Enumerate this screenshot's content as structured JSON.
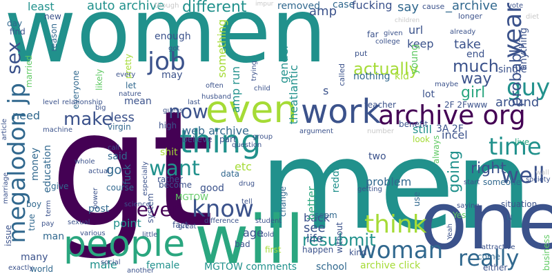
{
  "palette": {
    "dark_purple": "#440154",
    "indigo": "#3b528b",
    "blue": "#31688e",
    "teal": "#21918c",
    "sea_green": "#2aa67f",
    "green": "#5ec962",
    "yellow_green": "#a5db36",
    "yellow": "#dde318",
    "light_gray": "#c8c8c8"
  },
  "words": [
    {
      "text": "women",
      "size": 1,
      "color": "#21918c"
    },
    {
      "text": "gt",
      "size": 1,
      "color": "#440154"
    },
    {
      "text": "men",
      "size": 1,
      "color": "#21918c"
    },
    {
      "text": "one",
      "size": 1,
      "color": "#3b528b"
    },
    {
      "text": "will",
      "size": 1,
      "color": "#2aa67f"
    },
    {
      "text": "people",
      "size": 1,
      "color": "#2aa67f"
    },
    {
      "text": "even",
      "size": 1,
      "color": "#a5db36"
    },
    {
      "text": "work",
      "size": 1,
      "color": "#3b528b"
    },
    {
      "text": "archive org",
      "size": 1,
      "color": "#440154"
    },
    {
      "text": "thing",
      "size": 1,
      "color": "#21918c"
    },
    {
      "text": "woman",
      "size": 1,
      "color": "#31688e"
    },
    {
      "text": "megalodon jp",
      "size": 1,
      "color": "#31688e"
    },
    {
      "text": "know",
      "size": 1,
      "color": "#3b528b"
    },
    {
      "text": "never",
      "size": 1,
      "color": "#440154"
    },
    {
      "text": "think",
      "size": 1,
      "color": "#a5db36"
    },
    {
      "text": "really",
      "size": 1,
      "color": "#31688e"
    },
    {
      "text": "job",
      "size": 1,
      "color": "#3b528b"
    },
    {
      "text": "sex",
      "size": 1,
      "color": "#3b528b"
    },
    {
      "text": "year",
      "size": 1,
      "color": "#3b528b"
    },
    {
      "text": "guy",
      "size": 1,
      "color": "#21918c"
    },
    {
      "text": "time",
      "size": 1,
      "color": "#21918c"
    },
    {
      "text": "well",
      "size": 1,
      "color": "#3b528b"
    },
    {
      "text": "want",
      "size": 1,
      "color": "#21918c"
    },
    {
      "text": "now",
      "size": 1,
      "color": "#3b528b"
    },
    {
      "text": "make",
      "size": 1,
      "color": "#3b528b"
    },
    {
      "text": "resubmit",
      "size": 1,
      "color": "#21918c"
    },
    {
      "text": "actually",
      "size": 1,
      "color": "#a5db36"
    },
    {
      "text": "much",
      "size": 1,
      "color": "#3b528b"
    },
    {
      "text": "way",
      "size": 1,
      "color": "#3b528b"
    },
    {
      "text": "probably",
      "size": 1,
      "color": "#3b528b"
    },
    {
      "text": "girl",
      "size": 1,
      "color": "#2aa67f"
    },
    {
      "text": "going",
      "size": 1,
      "color": "#21918c"
    },
    {
      "text": "right",
      "size": 1,
      "color": "#3b528b"
    },
    {
      "text": "different",
      "size": 1,
      "color": "#21918c"
    },
    {
      "text": "auto archive",
      "size": 1,
      "color": "#21918c"
    },
    {
      "text": "least",
      "size": 1,
      "color": "#21918c"
    },
    {
      "text": "say",
      "size": 1,
      "color": "#31688e"
    },
    {
      "text": "amp",
      "size": 1,
      "color": "#3b528b"
    },
    {
      "text": "case",
      "size": 1,
      "color": "#31688e"
    },
    {
      "text": "fucking",
      "size": 1,
      "color": "#3b528b"
    },
    {
      "text": "_archive",
      "size": 1,
      "color": "#31688e"
    },
    {
      "text": "removed",
      "size": 1,
      "color": "#31688e"
    },
    {
      "text": "something",
      "size": 1,
      "color": "#a5db36"
    },
    {
      "text": "enough",
      "size": 1,
      "color": "#3b528b"
    },
    {
      "text": "may",
      "size": 1,
      "color": "#3b528b"
    },
    {
      "text": "amp run",
      "size": 1,
      "color": "#21918c"
    },
    {
      "text": "gender",
      "size": 1,
      "color": "#21918c"
    },
    {
      "text": "theatlantic",
      "size": 1,
      "color": "#21918c"
    },
    {
      "text": "url",
      "size": 1,
      "color": "#3b528b"
    },
    {
      "text": "keep",
      "size": 1,
      "color": "#3b528b"
    },
    {
      "text": "take",
      "size": 1,
      "color": "#3b528b"
    },
    {
      "text": "end",
      "size": 1,
      "color": "#3b528b"
    },
    {
      "text": "young",
      "size": 1,
      "color": "#5ec962"
    },
    {
      "text": "kid",
      "size": 1,
      "color": "#a5db36"
    },
    {
      "text": "nothing",
      "size": 1,
      "color": "#31688e"
    },
    {
      "text": "lot",
      "size": 1,
      "color": "#3b528b"
    },
    {
      "text": "single",
      "size": 1,
      "color": "#3b528b"
    },
    {
      "text": "anything",
      "size": 1,
      "color": "#3b528b"
    },
    {
      "text": "around",
      "size": 1,
      "color": "#3b528b"
    },
    {
      "text": "2F 2Fwww",
      "size": 1,
      "color": "#3b528b"
    },
    {
      "text": "3A 2F",
      "size": 1,
      "color": "#3b528b"
    },
    {
      "text": "incel",
      "size": 1,
      "color": "#3b528b"
    },
    {
      "text": "still",
      "size": 1,
      "color": "#21918c"
    },
    {
      "text": "web archive",
      "size": 1,
      "color": "#31688e"
    },
    {
      "text": "education",
      "size": 1,
      "color": "#31688e"
    },
    {
      "text": "money",
      "size": 1,
      "color": "#31688e"
    },
    {
      "text": "need",
      "size": 1,
      "color": "#31688e"
    },
    {
      "text": "less",
      "size": 1,
      "color": "#3b528b"
    },
    {
      "text": "mean",
      "size": 1,
      "color": "#3b528b"
    },
    {
      "text": "let",
      "size": 1,
      "color": "#31688e"
    },
    {
      "text": "virgin",
      "size": 1,
      "color": "#31688e"
    },
    {
      "text": "high",
      "size": 1,
      "color": "#3b528b"
    },
    {
      "text": "believe",
      "size": 1,
      "color": "#3b528b"
    },
    {
      "text": "part",
      "size": 1,
      "color": "#3b528b"
    },
    {
      "text": "said",
      "size": 1,
      "color": "#31688e"
    },
    {
      "text": "shit",
      "size": 1,
      "color": "#a5db36"
    },
    {
      "text": "etc",
      "size": 1,
      "color": "#a5db36"
    },
    {
      "text": "go",
      "size": 1,
      "color": "#31688e"
    },
    {
      "text": "fuck",
      "size": 1,
      "color": "#31688e"
    },
    {
      "text": "good",
      "size": 1,
      "color": "#3b528b"
    },
    {
      "text": "rather",
      "size": 1,
      "color": "#3b528b"
    },
    {
      "text": "data",
      "size": 1,
      "color": "#31688e"
    },
    {
      "text": "course",
      "size": 1,
      "color": "#31688e"
    },
    {
      "text": "give",
      "size": 1,
      "color": "#31688e"
    },
    {
      "text": "become",
      "size": 1,
      "color": "#3b528b"
    },
    {
      "text": "MGTOW",
      "size": 1,
      "color": "#5ec962"
    },
    {
      "text": "system",
      "size": 1,
      "color": "#3b528b"
    },
    {
      "text": "point",
      "size": 1,
      "color": "#21918c"
    },
    {
      "text": "post",
      "size": 1,
      "color": "#31688e"
    },
    {
      "text": "age",
      "size": 1,
      "color": "#3b528b"
    },
    {
      "text": "back",
      "size": 1,
      "color": "#3b528b"
    },
    {
      "text": "see",
      "size": 1,
      "color": "#3b528b"
    },
    {
      "text": "life",
      "size": 1,
      "color": "#3b528b"
    },
    {
      "text": "male",
      "size": 1,
      "color": "#21918c"
    },
    {
      "text": "female",
      "size": 1,
      "color": "#21918c"
    },
    {
      "text": "MGTOW comments",
      "size": 1,
      "color": "#21918c"
    },
    {
      "text": "school",
      "size": 1,
      "color": "#31688e"
    },
    {
      "text": "archive click",
      "size": 1,
      "color": "#a5db36"
    },
    {
      "text": "problem",
      "size": 1,
      "color": "#31688e"
    },
    {
      "text": "two",
      "size": 1,
      "color": "#3b528b"
    },
    {
      "text": "reddit",
      "size": 1,
      "color": "#21918c"
    },
    {
      "text": "better",
      "size": 1,
      "color": "#2aa67f"
    },
    {
      "text": "seem",
      "size": 1,
      "color": "#31688e"
    },
    {
      "text": "change",
      "size": 1,
      "color": "#31688e"
    },
    {
      "text": "fact",
      "size": 1,
      "color": "#3b528b"
    },
    {
      "text": "many",
      "size": 1,
      "color": "#3b528b"
    },
    {
      "text": "man",
      "size": 1,
      "color": "#31688e"
    },
    {
      "text": "true",
      "size": 1,
      "color": "#31688e"
    },
    {
      "text": "issue",
      "size": 1,
      "color": "#3b528b"
    },
    {
      "text": "boy",
      "size": 1,
      "color": "#31688e"
    },
    {
      "text": "world",
      "size": 1,
      "color": "#31688e"
    },
    {
      "text": "bad",
      "size": 1,
      "color": "#3b528b"
    },
    {
      "text": "first",
      "size": 1,
      "color": "#a5db36"
    },
    {
      "text": "happen",
      "size": 1,
      "color": "#3b528b"
    },
    {
      "text": "kind",
      "size": 1,
      "color": "#3b528b"
    },
    {
      "text": "without",
      "size": 1,
      "color": "#3b528b"
    },
    {
      "text": "look",
      "size": 1,
      "color": "#a5db36"
    },
    {
      "text": "live",
      "size": 1,
      "color": "#2aa67f"
    },
    {
      "text": "someone",
      "size": 1,
      "color": "#31688e"
    },
    {
      "text": "situation",
      "size": 1,
      "color": "#3b528b"
    },
    {
      "text": "use",
      "size": 1,
      "color": "#31688e"
    },
    {
      "text": "Yes",
      "size": 1,
      "color": "#5ec962"
    },
    {
      "text": "business",
      "size": 1,
      "color": "#5ec962"
    },
    {
      "text": "either",
      "size": 1,
      "color": "#3b528b"
    },
    {
      "text": "come",
      "size": 1,
      "color": "#31688e"
    },
    {
      "text": "always",
      "size": 1,
      "color": "#5ec962"
    },
    {
      "text": "benefit",
      "size": 1,
      "color": "#3b528b"
    },
    {
      "text": "teacher",
      "size": 1,
      "color": "#3b528b"
    },
    {
      "text": "u",
      "size": 1,
      "color": "#31688e"
    },
    {
      "text": "day",
      "size": 1,
      "color": "#31688e"
    },
    {
      "text": "find",
      "size": 1,
      "color": "#3b528b"
    },
    {
      "text": "new",
      "size": 1,
      "color": "#3b528b"
    },
    {
      "text": "reason",
      "size": 1,
      "color": "#31688e"
    },
    {
      "text": "married",
      "size": 1,
      "color": "#5ec962"
    },
    {
      "text": "everyone",
      "size": 1,
      "color": "#31688e"
    },
    {
      "text": "likely",
      "size": 1,
      "color": "#5ec962"
    },
    {
      "text": "pretty",
      "size": 1,
      "color": "#a5db36"
    },
    {
      "text": "far",
      "size": 1,
      "color": "#3b528b"
    },
    {
      "text": "put",
      "size": 1,
      "color": "#3b528b"
    },
    {
      "text": "called",
      "size": 1,
      "color": "#3b528b"
    },
    {
      "text": "longer",
      "size": 1,
      "color": "#3b528b"
    },
    {
      "text": "though",
      "size": 1,
      "color": "#c8c8c8"
    },
    {
      "text": "cause",
      "size": 1,
      "color": "#3b528b"
    },
    {
      "text": "diet",
      "size": 1,
      "color": "#c8c8c8"
    },
    {
      "text": "vote",
      "size": 1,
      "color": "#3b528b"
    },
    {
      "text": "college",
      "size": 1,
      "color": "#3b528b"
    },
    {
      "text": "already",
      "size": 1,
      "color": "#3b528b"
    },
    {
      "text": "given",
      "size": 1,
      "color": "#3b528b"
    },
    {
      "text": "children",
      "size": 1,
      "color": "#c8c8c8"
    },
    {
      "text": "impur",
      "size": 1,
      "color": "#c8c8c8"
    },
    {
      "text": "maybe",
      "size": 1,
      "color": "#3b528b"
    },
    {
      "text": "child",
      "size": 1,
      "color": "#3b528b"
    },
    {
      "text": "husband",
      "size": 1,
      "color": "#3b528b"
    },
    {
      "text": "often",
      "size": 1,
      "color": "#3b528b"
    },
    {
      "text": "trying",
      "size": 1,
      "color": "#3b528b"
    },
    {
      "text": "got",
      "size": 1,
      "color": "#3b528b"
    },
    {
      "text": "nature",
      "size": 1,
      "color": "#3b528b"
    },
    {
      "text": "every",
      "size": 1,
      "color": "#3b528b"
    },
    {
      "text": "last",
      "size": 1,
      "color": "#3b528b"
    },
    {
      "text": "level",
      "size": 1,
      "color": "#3b528b"
    },
    {
      "text": "relationship",
      "size": 1,
      "color": "#3b528b"
    },
    {
      "text": "big",
      "size": 1,
      "color": "#3b528b"
    },
    {
      "text": "guess",
      "size": 1,
      "color": "#3b528b"
    },
    {
      "text": "machine",
      "size": 1,
      "color": "#3b528b"
    },
    {
      "text": "article",
      "size": 1,
      "color": "#3b528b"
    },
    {
      "text": "argument",
      "size": 1,
      "color": "#3b528b"
    },
    {
      "text": "number",
      "size": 1,
      "color": "#c8c8c8"
    },
    {
      "text": "group",
      "size": 1,
      "color": "#3b528b"
    },
    {
      "text": "call",
      "size": 1,
      "color": "#3b528b"
    },
    {
      "text": "question",
      "size": 1,
      "color": "#3b528b"
    },
    {
      "text": "actual",
      "size": 1,
      "color": "#3b528b"
    },
    {
      "text": "whole",
      "size": 1,
      "color": "#3b528b"
    },
    {
      "text": "especially",
      "size": 1,
      "color": "#3b528b"
    },
    {
      "text": "drug",
      "size": 1,
      "color": "#3b528b"
    },
    {
      "text": "marriage",
      "size": 1,
      "color": "#3b528b"
    },
    {
      "text": "power",
      "size": 1,
      "color": "#3b528b"
    },
    {
      "text": "science",
      "size": 1,
      "color": "#3b528b"
    },
    {
      "text": "tell",
      "size": 1,
      "color": "#3b528b"
    },
    {
      "text": "getting",
      "size": 1,
      "color": "#3b528b"
    },
    {
      "text": "start",
      "size": 1,
      "color": "#3b528b"
    },
    {
      "text": "society",
      "size": 1,
      "color": "#3b528b"
    },
    {
      "text": "saying",
      "size": 1,
      "color": "#3b528b"
    },
    {
      "text": "term",
      "size": 1,
      "color": "#3b528b"
    },
    {
      "text": "pay",
      "size": 1,
      "color": "#3b528b"
    },
    {
      "text": "sexual",
      "size": 1,
      "color": "#3b528b"
    },
    {
      "text": "difference",
      "size": 1,
      "color": "#3b528b"
    },
    {
      "text": "student",
      "size": 1,
      "color": "#3b528b"
    },
    {
      "text": "great",
      "size": 1,
      "color": "#3b528b"
    },
    {
      "text": "various",
      "size": 1,
      "color": "#3b528b"
    },
    {
      "text": "little",
      "size": 1,
      "color": "#3b528b"
    },
    {
      "text": "told",
      "size": 1,
      "color": "#3b528b"
    },
    {
      "text": "Yeah",
      "size": 1,
      "color": "#3b528b"
    },
    {
      "text": "attractive",
      "size": 1,
      "color": "#3b528b"
    },
    {
      "text": "social",
      "size": 1,
      "color": "#3b528b"
    },
    {
      "text": "another",
      "size": 1,
      "color": "#3b528b"
    },
    {
      "text": "exactly",
      "size": 1,
      "color": "#3b528b"
    },
    {
      "text": "s",
      "size": 1,
      "color": "#3b528b"
    },
    {
      "text": "wall",
      "size": 1,
      "color": "#c8c8c8"
    }
  ]
}
